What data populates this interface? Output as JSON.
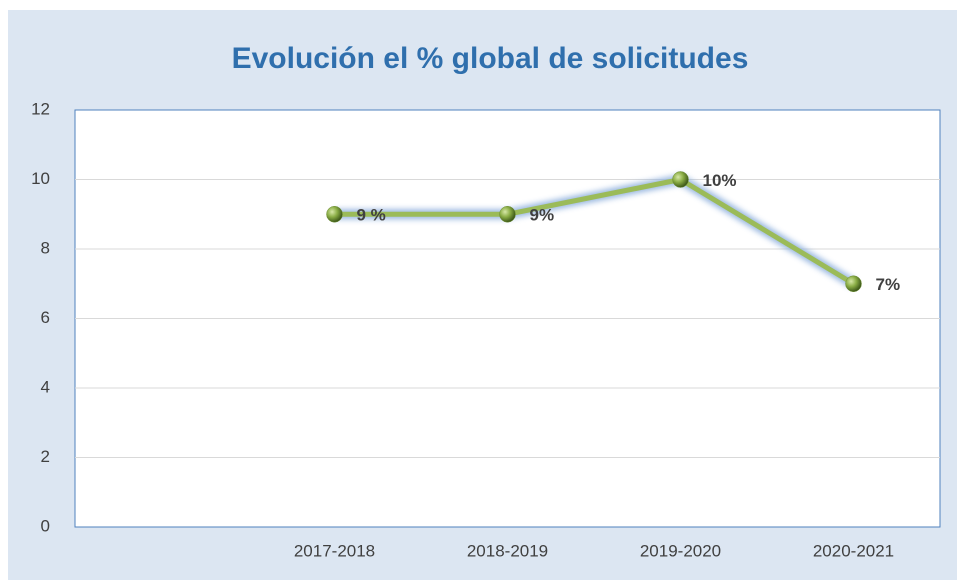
{
  "chart_data": {
    "type": "line",
    "title": "Evolución el % global de solicitudes",
    "categories": [
      null,
      "2017-2018",
      "2018-2019",
      "2019-2020",
      "2020-2021"
    ],
    "values": [
      null,
      9,
      9,
      10,
      7
    ],
    "value_labels": [
      null,
      "9 %",
      "9%",
      "10%",
      "7%"
    ],
    "color": "#9bbb59",
    "ylim": [
      0,
      12
    ],
    "yticks": [
      0,
      2,
      4,
      6,
      8,
      10,
      12
    ],
    "grid": true
  }
}
